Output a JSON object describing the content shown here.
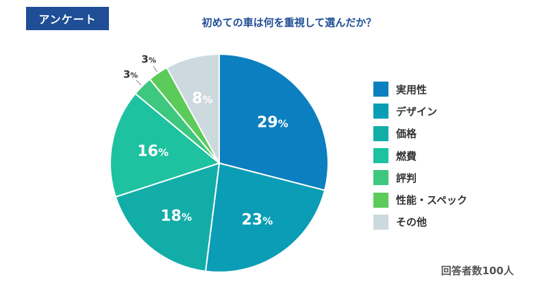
{
  "badge": "アンケート",
  "chart_data": {
    "type": "pie",
    "title": "初めての車は何を重視して選んだか？",
    "note": "回答者数100人",
    "legend_position": "right",
    "slices": [
      {
        "label": "実用性",
        "value": 29,
        "color": "#0b7fbf"
      },
      {
        "label": "デザイン",
        "value": 23,
        "color": "#0a9db5"
      },
      {
        "label": "価格",
        "value": 18,
        "color": "#13ada8"
      },
      {
        "label": "燃費",
        "value": 16,
        "color": "#1ec1a0"
      },
      {
        "label": "評判",
        "value": 3,
        "color": "#3ec77f"
      },
      {
        "label": "性能・スペック",
        "value": 3,
        "color": "#5ccb5a"
      },
      {
        "label": "その他",
        "value": 8,
        "color": "#ccd9de"
      }
    ]
  }
}
